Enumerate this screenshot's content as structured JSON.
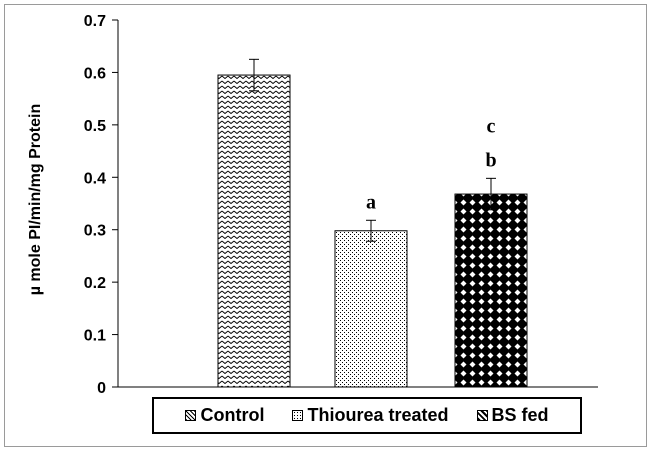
{
  "chart_data": {
    "type": "bar",
    "title": "",
    "xlabel": "",
    "ylabel": "µ mole PI/min/mg Protein",
    "ylim": [
      0,
      0.7
    ],
    "yticks": [
      "0",
      "0.1",
      "0.2",
      "0.3",
      "0.4",
      "0.5",
      "0.6",
      "0.7"
    ],
    "categories": [
      "Control",
      "Thiourea treated",
      "BS fed"
    ],
    "values": [
      0.595,
      0.298,
      0.368
    ],
    "errors": [
      0.03,
      0.02,
      0.03
    ],
    "annotations": [
      "",
      "a",
      "c\nb"
    ],
    "legend_position": "bottom",
    "grid": false,
    "patterns": [
      "zigzag",
      "dots",
      "diamonds"
    ]
  },
  "legend": {
    "items": [
      {
        "label": "Control",
        "pattern": "zigzag"
      },
      {
        "label": "Thiourea treated",
        "pattern": "dots"
      },
      {
        "label": "BS fed",
        "pattern": "diamonds"
      }
    ]
  }
}
